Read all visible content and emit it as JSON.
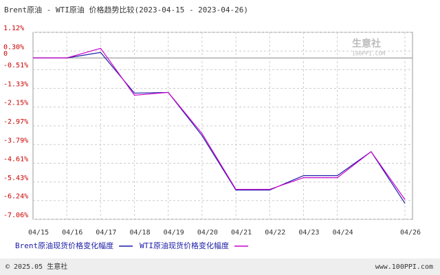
{
  "chart_data": {
    "type": "line",
    "title": "Brent原油 - WTI原油 价格趋势比较(2023-04-15 - 2023-04-26)",
    "watermark": {
      "name": "生意社",
      "site": "100PPI.COM"
    },
    "categories": [
      "04/15",
      "04/16",
      "04/17",
      "04/18",
      "04/19",
      "04/20",
      "04/21",
      "04/22",
      "04/23",
      "04/24",
      null,
      "04/26"
    ],
    "series": [
      {
        "name": "Brent原油现货价格变化幅度",
        "color": "#1a1aa6",
        "values": [
          0,
          0,
          0.24,
          -1.54,
          -1.51,
          -3.4,
          -5.78,
          -5.78,
          -5.15,
          -5.15,
          -4.1,
          -6.36
        ]
      },
      {
        "name": "WTI原油现货价格变化幅度",
        "color": "#cc00cc",
        "values": [
          0,
          0,
          0.42,
          -1.63,
          -1.51,
          -3.31,
          -5.75,
          -5.75,
          -5.24,
          -5.24,
          -4.1,
          -6.2
        ]
      }
    ],
    "ylim": [
      -7.06,
      1.12
    ],
    "yticks": [
      {
        "value": 1.12,
        "label": "1.12%"
      },
      {
        "value": 0.3,
        "label": "0.30%"
      },
      0,
      {
        "value": -0.51,
        "label": "-0.51%"
      },
      {
        "value": -1.33,
        "label": "-1.33%"
      },
      {
        "value": -2.15,
        "label": "-2.15%"
      },
      {
        "value": -2.97,
        "label": "-2.97%"
      },
      {
        "value": -3.79,
        "label": "-3.79%"
      },
      {
        "value": -4.61,
        "label": "-4.61%"
      },
      {
        "value": -5.43,
        "label": "-5.43%"
      },
      {
        "value": -6.24,
        "label": "-6.24%"
      },
      {
        "value": -7.06,
        "label": "-7.06%"
      }
    ],
    "grid": true,
    "footer": {
      "left": "© 2025.05 生意社",
      "right": "www.100PPI.com"
    }
  }
}
